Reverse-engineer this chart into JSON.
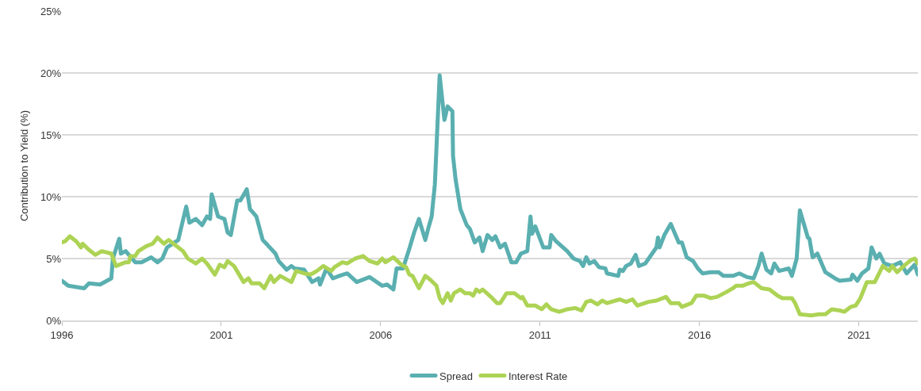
{
  "chart_data": {
    "type": "line",
    "ylabel": "Contribution to Yield (%)",
    "xlim": [
      1996,
      2022.85
    ],
    "xticks": [
      1996,
      2001,
      2006,
      2011,
      2016,
      2021
    ],
    "ylim": [
      0,
      25
    ],
    "yticks": [
      {
        "value": 0,
        "label": "0%"
      },
      {
        "value": 5,
        "label": "5%"
      },
      {
        "value": 10,
        "label": "10%"
      },
      {
        "value": 15,
        "label": "15%"
      },
      {
        "value": 20,
        "label": "20%"
      },
      {
        "value": 25,
        "label": "25%"
      }
    ],
    "grid": "y",
    "legend": "bottom",
    "marker": "none",
    "line_style": "solid",
    "series": [
      {
        "name": "Spread",
        "color": "#5aafb0",
        "x": [
          1996.0,
          1996.2,
          1996.7,
          1996.85,
          1997.2,
          1997.55,
          1997.6,
          1997.8,
          1997.85,
          1998.0,
          1998.3,
          1998.5,
          1998.8,
          1999.0,
          1999.15,
          1999.3,
          1999.65,
          1999.9,
          2000.0,
          2000.2,
          2000.4,
          2000.55,
          2000.65,
          2000.7,
          2000.9,
          2001.1,
          2001.2,
          2001.3,
          2001.5,
          2001.6,
          2001.8,
          2001.9,
          2002.1,
          2002.3,
          2002.45,
          2002.7,
          2002.8,
          2003.05,
          2003.2,
          2003.3,
          2003.6,
          2003.85,
          2004.05,
          2004.1,
          2004.3,
          2004.5,
          2004.7,
          2004.95,
          2005.25,
          2005.65,
          2006.05,
          2006.2,
          2006.4,
          2006.5,
          2006.7,
          2006.9,
          2007.05,
          2007.2,
          2007.4,
          2007.5,
          2007.6,
          2007.7,
          2007.85,
          2008.0,
          2008.1,
          2008.25,
          2008.27,
          2008.35,
          2008.5,
          2008.7,
          2008.8,
          2008.95,
          2009.1,
          2009.2,
          2009.35,
          2009.5,
          2009.6,
          2009.75,
          2009.9,
          2010.1,
          2010.25,
          2010.4,
          2010.6,
          2010.7,
          2010.75,
          2010.85,
          2011.1,
          2011.3,
          2011.35,
          2011.5,
          2011.85,
          2012.05,
          2012.25,
          2012.35,
          2012.45,
          2012.55,
          2012.7,
          2012.85,
          2013.05,
          2013.1,
          2013.45,
          2013.5,
          2013.6,
          2013.7,
          2013.85,
          2014.0,
          2014.1,
          2014.3,
          2014.65,
          2014.7,
          2014.75,
          2014.9,
          2015.1,
          2015.35,
          2015.45,
          2015.6,
          2015.8,
          2015.95,
          2016.1,
          2016.35,
          2016.6,
          2016.75,
          2017.05,
          2017.25,
          2017.5,
          2017.7,
          2017.85,
          2017.95,
          2018.1,
          2018.25,
          2018.35,
          2018.5,
          2018.8,
          2018.9,
          2019.05,
          2019.15,
          2019.4,
          2019.45,
          2019.55,
          2019.7,
          2019.95,
          2020.25,
          2020.4,
          2020.75,
          2020.8,
          2020.95,
          2021.1,
          2021.3,
          2021.4,
          2021.55,
          2021.65,
          2021.8,
          2022.05,
          2022.3,
          2022.5,
          2022.75,
          2022.85
        ],
        "values": [
          3.2,
          2.8,
          2.6,
          3.0,
          2.9,
          3.4,
          5.0,
          6.6,
          5.4,
          5.6,
          4.7,
          4.7,
          5.1,
          4.7,
          5.0,
          5.9,
          6.5,
          9.2,
          7.9,
          8.2,
          7.7,
          8.4,
          8.2,
          10.2,
          8.4,
          8.2,
          7.1,
          6.9,
          9.7,
          9.7,
          10.6,
          9.0,
          8.4,
          6.5,
          6.1,
          5.4,
          4.8,
          4.1,
          4.4,
          4.2,
          4.1,
          3.1,
          3.4,
          2.9,
          4.2,
          3.4,
          3.6,
          3.8,
          3.1,
          3.5,
          2.8,
          2.9,
          2.5,
          4.2,
          4.2,
          5.8,
          7.1,
          8.2,
          6.5,
          7.5,
          8.4,
          11.0,
          19.8,
          16.2,
          17.3,
          16.9,
          13.3,
          11.4,
          9.0,
          7.7,
          7.4,
          6.3,
          6.7,
          5.6,
          6.9,
          6.5,
          6.8,
          5.9,
          6.2,
          4.7,
          4.7,
          5.4,
          5.6,
          8.4,
          7.0,
          7.6,
          5.9,
          5.9,
          6.9,
          6.4,
          5.6,
          5.0,
          4.8,
          4.4,
          5.1,
          4.6,
          4.8,
          4.3,
          4.2,
          3.8,
          3.6,
          4.1,
          4.0,
          4.4,
          4.6,
          5.3,
          4.4,
          4.6,
          5.9,
          6.7,
          5.9,
          6.9,
          7.8,
          6.3,
          6.3,
          5.1,
          4.8,
          4.2,
          3.8,
          3.9,
          3.9,
          3.6,
          3.6,
          3.8,
          3.5,
          3.4,
          4.4,
          5.4,
          4.1,
          3.8,
          4.6,
          4.0,
          4.2,
          3.6,
          5.0,
          8.9,
          6.7,
          6.6,
          5.1,
          5.4,
          3.9,
          3.4,
          3.2,
          3.3,
          3.7,
          3.2,
          3.8,
          4.2,
          5.9,
          5.0,
          5.4,
          4.6,
          4.4,
          4.7,
          3.8,
          4.5,
          3.7
        ]
      },
      {
        "name": "Interest Rate",
        "color": "#add355",
        "x": [
          1996.0,
          1996.1,
          1996.25,
          1996.45,
          1996.6,
          1996.65,
          1996.85,
          1997.05,
          1997.25,
          1997.55,
          1997.7,
          1998.0,
          1998.1,
          1998.15,
          1998.3,
          1998.4,
          1998.65,
          1998.85,
          1999.0,
          1999.2,
          1999.35,
          1999.5,
          1999.8,
          1999.95,
          2000.2,
          2000.4,
          2000.55,
          2000.8,
          2000.95,
          2001.1,
          2001.2,
          2001.4,
          2001.7,
          2001.85,
          2001.95,
          2002.2,
          2002.35,
          2002.55,
          2002.65,
          2002.85,
          2003.2,
          2003.35,
          2003.6,
          2003.8,
          2004.0,
          2004.2,
          2004.45,
          2004.55,
          2004.8,
          2004.95,
          2005.2,
          2005.45,
          2005.65,
          2005.9,
          2006.05,
          2006.15,
          2006.4,
          2006.65,
          2006.8,
          2006.9,
          2007.0,
          2007.2,
          2007.4,
          2007.55,
          2007.75,
          2007.85,
          2007.95,
          2008.1,
          2008.2,
          2008.3,
          2008.5,
          2008.65,
          2008.8,
          2008.9,
          2009.0,
          2009.1,
          2009.2,
          2009.5,
          2009.65,
          2009.75,
          2009.95,
          2010.2,
          2010.4,
          2010.45,
          2010.6,
          2010.85,
          2011.05,
          2011.2,
          2011.35,
          2011.6,
          2011.85,
          2012.1,
          2012.3,
          2012.45,
          2012.6,
          2012.8,
          2012.95,
          2013.1,
          2013.5,
          2013.7,
          2013.9,
          2014.05,
          2014.4,
          2014.65,
          2014.95,
          2015.1,
          2015.35,
          2015.45,
          2015.75,
          2015.9,
          2016.15,
          2016.35,
          2016.55,
          2016.85,
          2017.05,
          2017.15,
          2017.35,
          2017.55,
          2017.7,
          2017.95,
          2018.2,
          2018.45,
          2018.6,
          2018.9,
          2019.0,
          2019.15,
          2019.5,
          2019.75,
          2019.95,
          2020.15,
          2020.4,
          2020.55,
          2020.75,
          2020.9,
          2021.05,
          2021.25,
          2021.5,
          2021.75,
          2021.95,
          2022.05,
          2022.2,
          2022.5,
          2022.65,
          2022.75,
          2022.85
        ],
        "values": [
          6.3,
          6.4,
          6.8,
          6.4,
          5.9,
          6.2,
          5.7,
          5.3,
          5.6,
          5.4,
          4.4,
          4.7,
          4.7,
          5.2,
          5.2,
          5.6,
          6.0,
          6.2,
          6.7,
          6.2,
          6.5,
          6.2,
          5.6,
          5.0,
          4.6,
          5.0,
          4.6,
          3.7,
          4.5,
          4.3,
          4.8,
          4.4,
          3.1,
          3.4,
          3.0,
          3.0,
          2.6,
          3.6,
          3.1,
          3.6,
          3.1,
          4.0,
          3.8,
          3.7,
          4.0,
          4.4,
          4.0,
          4.3,
          4.7,
          4.6,
          5.0,
          5.2,
          4.8,
          4.6,
          5.0,
          4.7,
          5.1,
          4.5,
          4.3,
          3.7,
          3.6,
          2.6,
          3.6,
          3.3,
          2.8,
          1.8,
          1.4,
          2.2,
          1.6,
          2.2,
          2.5,
          2.2,
          2.2,
          2.0,
          2.5,
          2.3,
          2.5,
          1.8,
          1.4,
          1.4,
          2.2,
          2.2,
          1.8,
          1.9,
          1.2,
          1.2,
          0.9,
          1.3,
          0.9,
          0.7,
          0.9,
          1.0,
          0.8,
          1.5,
          1.6,
          1.3,
          1.6,
          1.4,
          1.7,
          1.5,
          1.7,
          1.2,
          1.5,
          1.6,
          1.9,
          1.4,
          1.4,
          1.1,
          1.4,
          2.0,
          2.0,
          1.8,
          1.9,
          2.3,
          2.6,
          2.8,
          2.8,
          3.0,
          3.1,
          2.6,
          2.5,
          2.0,
          1.8,
          1.8,
          1.4,
          0.5,
          0.4,
          0.5,
          0.5,
          0.9,
          0.8,
          0.7,
          1.1,
          1.2,
          1.8,
          3.1,
          3.1,
          4.4,
          4.0,
          4.4,
          3.9,
          4.6,
          4.9,
          5.0,
          4.6
        ]
      }
    ]
  }
}
